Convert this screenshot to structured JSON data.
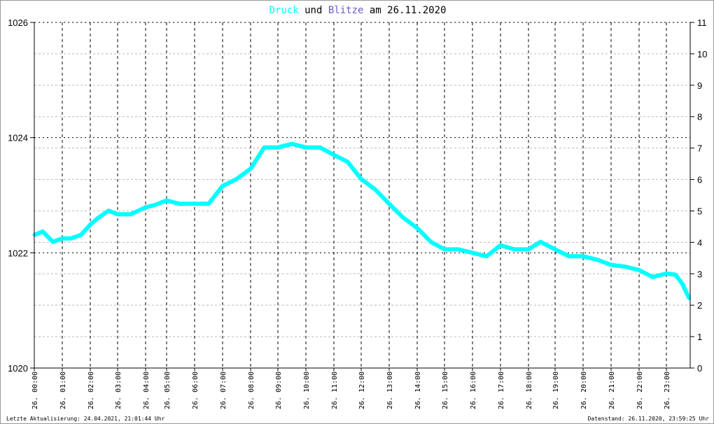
{
  "chart_data": {
    "type": "line",
    "title_parts": {
      "series1": "Druck",
      "joiner": "und",
      "series2": "Blitze",
      "suffix": "am 26.11.2020"
    },
    "colors": {
      "Druck": "#00ffff",
      "Blitze": "#6a5acd"
    },
    "y_left": {
      "range": [
        1020,
        1026
      ],
      "ticks": [
        "1020",
        "1022",
        "1024",
        "1026"
      ]
    },
    "y_right": {
      "range": [
        0,
        11
      ],
      "ticks": [
        "0",
        "1",
        "2",
        "3",
        "4",
        "5",
        "6",
        "7",
        "8",
        "9",
        "10",
        "11"
      ]
    },
    "x_ticks": [
      "26. 00:00",
      "26. 01:00",
      "26. 02:00",
      "26. 03:00",
      "26. 04:00",
      "26. 05:00",
      "26. 06:00",
      "26. 07:00",
      "26. 08:00",
      "26. 09:00",
      "26. 10:00",
      "26. 11:00",
      "26. 12:00",
      "26. 13:00",
      "26. 14:00",
      "26. 15:00",
      "26. 16:00",
      "26. 17:00",
      "26. 18:00",
      "26. 19:00",
      "26. 20:00",
      "26. 21:00",
      "26. 22:00",
      "26. 23:00"
    ],
    "grid": true,
    "series": [
      {
        "name": "Druck",
        "axis": "left",
        "x": [
          "00:00",
          "00:18",
          "00:40",
          "01:00",
          "01:18",
          "01:40",
          "02:00",
          "02:18",
          "02:40",
          "03:00",
          "03:28",
          "04:00",
          "04:26",
          "05:00",
          "05:27",
          "06:00",
          "06:30",
          "07:00",
          "07:30",
          "08:00",
          "08:30",
          "09:00",
          "09:30",
          "10:00",
          "10:30",
          "11:00",
          "11:30",
          "12:00",
          "12:30",
          "13:00",
          "13:30",
          "14:00",
          "14:30",
          "15:00",
          "15:30",
          "16:00",
          "16:30",
          "17:00",
          "17:30",
          "18:00",
          "18:27",
          "19:00",
          "19:30",
          "20:00",
          "20:30",
          "21:00",
          "21:30",
          "22:00",
          "22:30",
          "23:00",
          "23:20",
          "23:35",
          "23:50"
        ],
        "y": [
          1022.31,
          1022.37,
          1022.19,
          1022.25,
          1022.25,
          1022.31,
          1022.49,
          1022.61,
          1022.73,
          1022.67,
          1022.67,
          1022.79,
          1022.83,
          1022.91,
          1022.85,
          1022.85,
          1022.85,
          1023.16,
          1023.28,
          1023.46,
          1023.83,
          1023.83,
          1023.89,
          1023.83,
          1023.83,
          1023.7,
          1023.58,
          1023.28,
          1023.1,
          1022.85,
          1022.61,
          1022.43,
          1022.19,
          1022.06,
          1022.06,
          1022.0,
          1021.94,
          1022.13,
          1022.06,
          1022.06,
          1022.19,
          1022.06,
          1021.94,
          1021.94,
          1021.88,
          1021.79,
          1021.76,
          1021.7,
          1021.58,
          1021.64,
          1021.62,
          1021.46,
          1021.21
        ]
      }
    ]
  },
  "footer": {
    "left": "Letzte Aktualisierung: 24.04.2021, 21:01:44 Uhr",
    "right": "Datenstand: 26.11.2020, 23:59:25 Uhr"
  }
}
